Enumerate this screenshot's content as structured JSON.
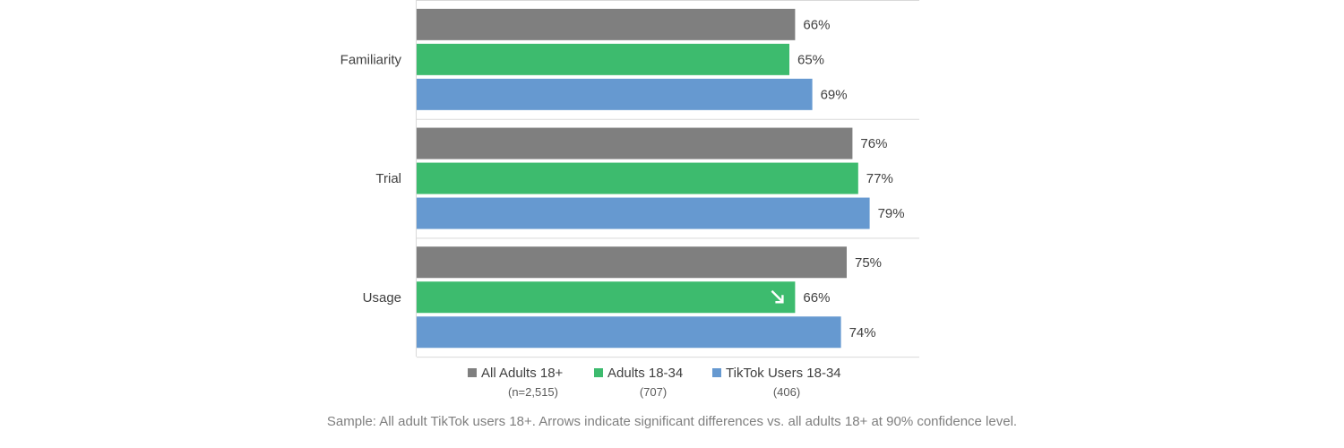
{
  "chart_data": {
    "type": "bar",
    "orientation": "horizontal",
    "categories": [
      "Familiarity",
      "Trial",
      "Usage"
    ],
    "series": [
      {
        "name": "All Adults 18+",
        "sample": "(n=2,515)",
        "color": "#7f7f7f",
        "values": [
          66,
          76,
          75
        ],
        "labels": [
          "66%",
          "76%",
          "75%"
        ]
      },
      {
        "name": "Adults 18-34",
        "sample": "(707)",
        "color": "#3dbb6e",
        "values": [
          65,
          77,
          66
        ],
        "labels": [
          "65%",
          "77%",
          "66%"
        ]
      },
      {
        "name": "TikTok Users 18-34",
        "sample": "(406)",
        "color": "#6699d0",
        "values": [
          69,
          79,
          74
        ],
        "labels": [
          "69%",
          "79%",
          "74%"
        ]
      }
    ],
    "significance_arrows": [
      {
        "category": "Usage",
        "series": "Adults 18-34",
        "direction": "down"
      }
    ],
    "xlim": [
      0,
      100
    ],
    "legend_position": "bottom",
    "grid": false
  },
  "footnote": "Sample: All adult TikTok users 18+. Arrows indicate significant differences vs. all adults 18+ at 90% confidence level."
}
